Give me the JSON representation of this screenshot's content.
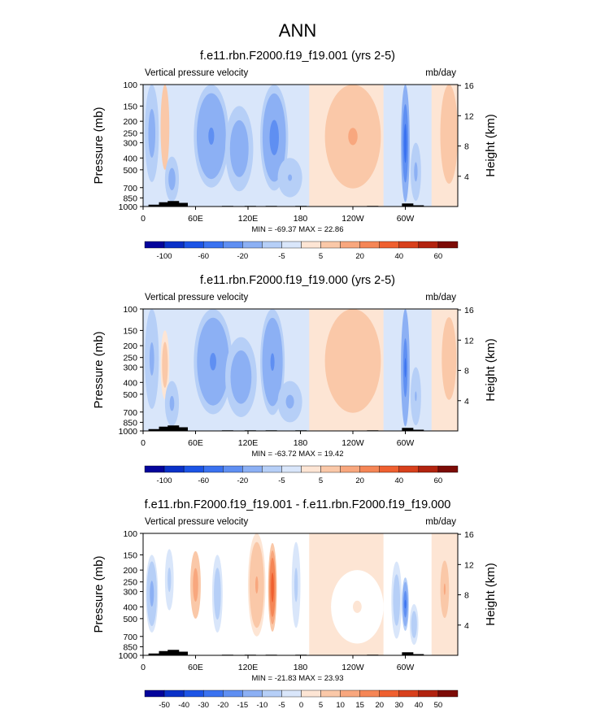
{
  "figure_title": "ANN",
  "colors": {
    "blues": [
      "#04049b",
      "#0a31c8",
      "#1c54e6",
      "#3a72f0",
      "#5f8ff2",
      "#8cb0f4",
      "#b6cff7",
      "#d9e6fa"
    ],
    "reds": [
      "#fde5d4",
      "#fac8a8",
      "#f8a77e",
      "#f58656",
      "#ef6030",
      "#d8401c",
      "#b2230f",
      "#7c0b06"
    ],
    "neutral": "#ffffff",
    "terrain": "#000000"
  },
  "chart_data": [
    {
      "type": "heatmap",
      "title": "f.e11.rbn.F2000.f19_f19.001 (yrs 2-5)",
      "left_label": "Vertical pressure velocity",
      "right_label": "mb/day",
      "ylabel": "Pressure (mb)",
      "ylabel_right": "Height (km)",
      "pressure_ticks": [
        100,
        150,
        200,
        250,
        300,
        400,
        500,
        700,
        850,
        1000
      ],
      "height_ticks": [
        4,
        8,
        12,
        16
      ],
      "lon_ticks": [
        "0",
        "60E",
        "120E",
        "180",
        "120W",
        "60W"
      ],
      "xlim": [
        0,
        360
      ],
      "ylim": [
        1000,
        100
      ],
      "stats": "MIN = -69.37  MAX =  22.86",
      "colorbar_levels": [
        "-100",
        "-60",
        "-20",
        "-5",
        "5",
        "20",
        "40",
        "60"
      ],
      "features": [
        {
          "lon": 10,
          "p": 350,
          "dlon": 8,
          "dp": 280,
          "value": -28
        },
        {
          "lon": 25,
          "p": 300,
          "dlon": 5,
          "dp": 200,
          "value": 14
        },
        {
          "lon": 33,
          "p": 650,
          "dlon": 8,
          "dp": 260,
          "value": -30
        },
        {
          "lon": 78,
          "p": 380,
          "dlon": 20,
          "dp": 320,
          "value": -42
        },
        {
          "lon": 110,
          "p": 450,
          "dlon": 16,
          "dp": 300,
          "value": -34
        },
        {
          "lon": 150,
          "p": 420,
          "dlon": 16,
          "dp": 320,
          "value": -48
        },
        {
          "lon": 168,
          "p": 620,
          "dlon": 14,
          "dp": 220,
          "value": -22
        },
        {
          "lon": 240,
          "p": 380,
          "dlon": 32,
          "dp": 330,
          "value": 22
        },
        {
          "lon": 300,
          "p": 500,
          "dlon": 5,
          "dp": 420,
          "value": -69
        },
        {
          "lon": 312,
          "p": 600,
          "dlon": 6,
          "dp": 300,
          "value": -25
        },
        {
          "lon": 350,
          "p": 330,
          "dlon": 10,
          "dp": 320,
          "value": 18
        }
      ]
    },
    {
      "type": "heatmap",
      "title": "f.e11.rbn.F2000.f19_f19.000 (yrs 2-5)",
      "left_label": "Vertical pressure velocity",
      "right_label": "mb/day",
      "ylabel": "Pressure (mb)",
      "ylabel_right": "Height (km)",
      "pressure_ticks": [
        100,
        150,
        200,
        250,
        300,
        400,
        500,
        700,
        850,
        1000
      ],
      "height_ticks": [
        4,
        8,
        12,
        16
      ],
      "lon_ticks": [
        "0",
        "60E",
        "120E",
        "180",
        "120W",
        "60W"
      ],
      "xlim": [
        0,
        360
      ],
      "ylim": [
        1000,
        100
      ],
      "stats": "MIN = -63.72  MAX =  19.42",
      "colorbar_levels": [
        "-100",
        "-60",
        "-20",
        "-5",
        "5",
        "20",
        "40",
        "60"
      ],
      "features": [
        {
          "lon": 10,
          "p": 380,
          "dlon": 8,
          "dp": 280,
          "value": -25
        },
        {
          "lon": 25,
          "p": 350,
          "dlon": 5,
          "dp": 200,
          "value": 8
        },
        {
          "lon": 33,
          "p": 650,
          "dlon": 8,
          "dp": 260,
          "value": -24
        },
        {
          "lon": 80,
          "p": 400,
          "dlon": 22,
          "dp": 330,
          "value": -40
        },
        {
          "lon": 112,
          "p": 470,
          "dlon": 18,
          "dp": 300,
          "value": -33
        },
        {
          "lon": 148,
          "p": 420,
          "dlon": 14,
          "dp": 320,
          "value": -44
        },
        {
          "lon": 168,
          "p": 620,
          "dlon": 14,
          "dp": 230,
          "value": -24
        },
        {
          "lon": 240,
          "p": 380,
          "dlon": 32,
          "dp": 330,
          "value": 19
        },
        {
          "lon": 300,
          "p": 500,
          "dlon": 5,
          "dp": 420,
          "value": -63
        },
        {
          "lon": 312,
          "p": 600,
          "dlon": 6,
          "dp": 300,
          "value": -22
        },
        {
          "lon": 350,
          "p": 330,
          "dlon": 10,
          "dp": 320,
          "value": 12
        }
      ]
    },
    {
      "type": "heatmap",
      "title": "f.e11.rbn.F2000.f19_f19.001 - f.e11.rbn.F2000.f19_f19.000",
      "left_label": "Vertical pressure velocity",
      "right_label": "mb/day",
      "ylabel": "Pressure (mb)",
      "ylabel_right": "Height (km)",
      "pressure_ticks": [
        100,
        150,
        200,
        250,
        300,
        400,
        500,
        700,
        850,
        1000
      ],
      "height_ticks": [
        4,
        8,
        12,
        16
      ],
      "lon_ticks": [
        "0",
        "60E",
        "120E",
        "180",
        "120W",
        "60W"
      ],
      "xlim": [
        0,
        360
      ],
      "ylim": [
        1000,
        100
      ],
      "stats": "MIN = -21.83  MAX =  23.93",
      "colorbar_levels": [
        "-50",
        "-40",
        "-30",
        "-20",
        "-15",
        "-10",
        "-5",
        "0",
        "5",
        "10",
        "15",
        "20",
        "30",
        "40",
        "50"
      ],
      "features": [
        {
          "lon": 10,
          "p": 400,
          "dlon": 7,
          "dp": 250,
          "value": -12
        },
        {
          "lon": 30,
          "p": 300,
          "dlon": 6,
          "dp": 180,
          "value": -6
        },
        {
          "lon": 60,
          "p": 320,
          "dlon": 6,
          "dp": 180,
          "value": 14
        },
        {
          "lon": 85,
          "p": 400,
          "dlon": 6,
          "dp": 250,
          "value": -8
        },
        {
          "lon": 130,
          "p": 400,
          "dlon": 10,
          "dp": 300,
          "value": 10
        },
        {
          "lon": 148,
          "p": 380,
          "dlon": 5,
          "dp": 260,
          "value": 24
        },
        {
          "lon": 175,
          "p": 400,
          "dlon": 6,
          "dp": 300,
          "value": -6
        },
        {
          "lon": 245,
          "p": 500,
          "dlon": 30,
          "dp": 300,
          "value": 3
        },
        {
          "lon": 290,
          "p": 450,
          "dlon": 6,
          "dp": 280,
          "value": -9
        },
        {
          "lon": 300,
          "p": 430,
          "dlon": 4,
          "dp": 200,
          "value": -22
        },
        {
          "lon": 310,
          "p": 600,
          "dlon": 5,
          "dp": 220,
          "value": -8
        },
        {
          "lon": 345,
          "p": 350,
          "dlon": 6,
          "dp": 200,
          "value": 10
        }
      ]
    }
  ]
}
